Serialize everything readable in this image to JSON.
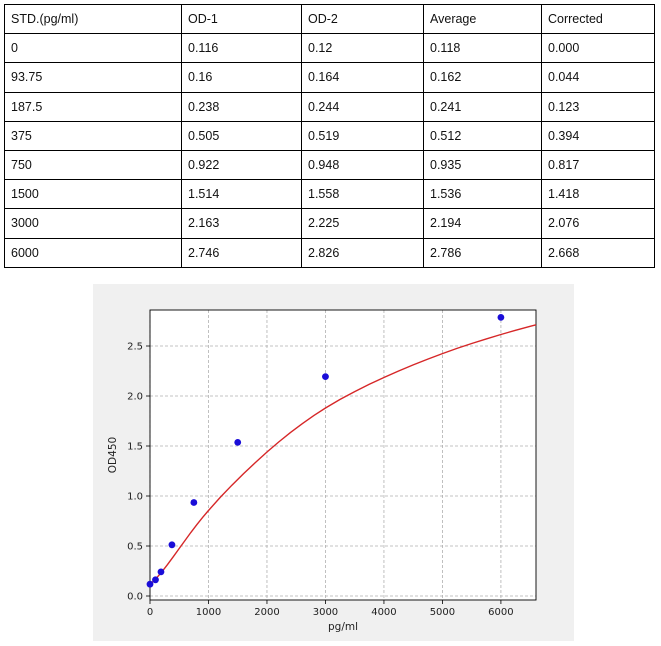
{
  "table": {
    "headers": [
      "STD.(pg/ml)",
      "OD-1",
      "OD-2",
      "Average",
      "Corrected"
    ],
    "rows": [
      [
        "0",
        "0.116",
        "0.12",
        "0.118",
        "0.000"
      ],
      [
        "93.75",
        "0.16",
        "0.164",
        "0.162",
        "0.044"
      ],
      [
        "187.5",
        "0.238",
        "0.244",
        "0.241",
        "0.123"
      ],
      [
        "375",
        "0.505",
        "0.519",
        "0.512",
        "0.394"
      ],
      [
        "750",
        "0.922",
        "0.948",
        "0.935",
        "0.817"
      ],
      [
        "1500",
        "1.514",
        "1.558",
        "1.536",
        "1.418"
      ],
      [
        "3000",
        "2.163",
        "2.225",
        "2.194",
        "2.076"
      ],
      [
        "6000",
        "2.746",
        "2.826",
        "2.786",
        "2.668"
      ]
    ]
  },
  "chart_data": {
    "type": "scatter",
    "xlabel": "pg/ml",
    "ylabel": "OD450",
    "xlim": [
      0,
      6600
    ],
    "ylim": [
      -0.04,
      2.86
    ],
    "x_ticks": [
      "0",
      "1000",
      "2000",
      "3000",
      "4000",
      "5000",
      "6000"
    ],
    "y_ticks": [
      "0.0",
      "0.5",
      "1.0",
      "1.5",
      "2.0",
      "2.5"
    ],
    "grid": true,
    "series": [
      {
        "x": [
          0,
          93.75,
          187.5,
          375,
          750,
          1500,
          3000,
          6000
        ],
        "y": [
          0.118,
          0.162,
          0.241,
          0.512,
          0.935,
          1.536,
          2.194,
          2.786
        ],
        "marker_color": "#1a0dd8"
      }
    ],
    "fit_curve": {
      "color": "#d62728",
      "x": [
        0,
        100,
        200,
        300,
        400,
        500,
        600,
        700,
        800,
        900,
        1000,
        1200,
        1400,
        1600,
        1800,
        2000,
        2200,
        2400,
        2600,
        2800,
        3000,
        3250,
        3500,
        3750,
        4000,
        4250,
        4500,
        4750,
        5000,
        5250,
        5500,
        5750,
        6000,
        6250,
        6500,
        6600
      ],
      "y": [
        0.116,
        0.172,
        0.239,
        0.314,
        0.394,
        0.475,
        0.556,
        0.636,
        0.713,
        0.786,
        0.855,
        0.986,
        1.108,
        1.224,
        1.334,
        1.44,
        1.54,
        1.634,
        1.722,
        1.804,
        1.88,
        1.966,
        2.044,
        2.117,
        2.185,
        2.25,
        2.311,
        2.369,
        2.424,
        2.476,
        2.525,
        2.571,
        2.615,
        2.657,
        2.697,
        2.712
      ]
    }
  }
}
